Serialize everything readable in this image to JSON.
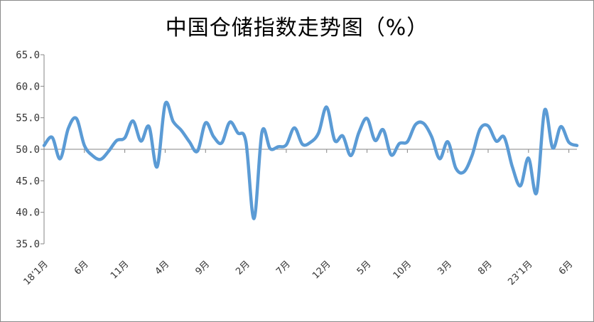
{
  "chart_data": {
    "type": "line",
    "title": "中国仓储指数走势图（%）",
    "xlabel": "",
    "ylabel": "",
    "ylim": [
      35.0,
      65.0
    ],
    "yticks": [
      "35.0",
      "40.0",
      "45.0",
      "50.0",
      "55.0",
      "60.0",
      "65.0"
    ],
    "ytick_values": [
      35,
      40,
      45,
      50,
      55,
      60,
      65
    ],
    "x_tick_labels": [
      {
        "index": 0,
        "label": "18’1月"
      },
      {
        "index": 5,
        "label": "6月"
      },
      {
        "index": 10,
        "label": "11月"
      },
      {
        "index": 15,
        "label": "4月"
      },
      {
        "index": 20,
        "label": "9月"
      },
      {
        "index": 25,
        "label": "2月"
      },
      {
        "index": 30,
        "label": "7月"
      },
      {
        "index": 35,
        "label": "12月"
      },
      {
        "index": 40,
        "label": "5月"
      },
      {
        "index": 45,
        "label": "10月"
      },
      {
        "index": 50,
        "label": "3月"
      },
      {
        "index": 55,
        "label": "8月"
      },
      {
        "index": 60,
        "label": "23’1月"
      },
      {
        "index": 65,
        "label": "6月"
      }
    ],
    "grid": false,
    "line_color": "#5b9bd5",
    "series": [
      {
        "values": [
          50.6,
          51.9,
          48.5,
          53.3,
          54.9,
          50.6,
          49.0,
          48.4,
          49.7,
          51.4,
          51.8,
          54.5,
          51.3,
          53.6,
          47.2,
          57.2,
          54.4,
          53.0,
          51.2,
          49.7,
          54.2,
          52.0,
          51.0,
          54.3,
          52.6,
          51.2,
          39.0,
          52.8,
          50.1,
          50.4,
          50.7,
          53.4,
          50.8,
          51.1,
          52.6,
          56.7,
          51.4,
          52.1,
          49.0,
          52.7,
          54.9,
          51.4,
          53.1,
          49.1,
          50.9,
          51.2,
          53.9,
          54.1,
          52.0,
          48.5,
          51.2,
          47.0,
          46.4,
          49.0,
          53.2,
          53.7,
          51.3,
          51.9,
          47.2,
          44.2,
          48.6,
          43.1,
          56.2,
          50.2,
          53.6,
          51.1,
          50.6
        ]
      }
    ]
  }
}
